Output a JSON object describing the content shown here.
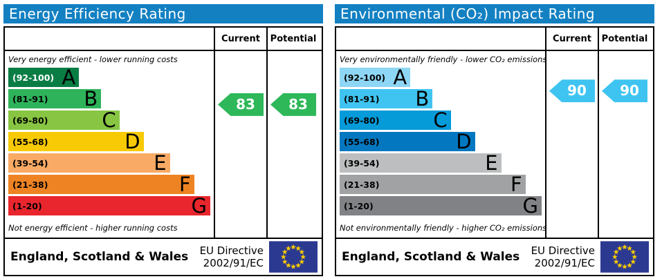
{
  "footer": {
    "region": "England, Scotland & Wales",
    "directive_line1": "EU Directive",
    "directive_line2": "2002/91/EC",
    "flag_bg": "#2b3990",
    "star_color": "#ffcc00"
  },
  "chart_data": [
    {
      "type": "bar",
      "title": "Energy Efficiency Rating",
      "title_bg": "#1380c2",
      "columns": {
        "current": "Current",
        "potential": "Potential"
      },
      "top_note": "Very energy efficient - lower running costs",
      "bottom_note": "Not energy efficient - higher running costs",
      "current": 83,
      "potential": 83,
      "marker_color": "#2eb859",
      "bands": [
        {
          "letter": "A",
          "range": "(92-100)",
          "lo": 92,
          "hi": 100,
          "color": "#0a7d45",
          "width_pct": 35,
          "range_color": "#ffffff"
        },
        {
          "letter": "B",
          "range": "(81-91)",
          "lo": 81,
          "hi": 91,
          "color": "#2eb35a",
          "width_pct": 46
        },
        {
          "letter": "C",
          "range": "(69-80)",
          "lo": 69,
          "hi": 80,
          "color": "#88c542",
          "width_pct": 55
        },
        {
          "letter": "D",
          "range": "(55-68)",
          "lo": 55,
          "hi": 68,
          "color": "#f8ca05",
          "width_pct": 67
        },
        {
          "letter": "E",
          "range": "(39-54)",
          "lo": 39,
          "hi": 54,
          "color": "#f9aa65",
          "width_pct": 80
        },
        {
          "letter": "F",
          "range": "(21-38)",
          "lo": 21,
          "hi": 38,
          "color": "#ee8323",
          "width_pct": 92
        },
        {
          "letter": "G",
          "range": "(1-20)",
          "lo": 1,
          "hi": 20,
          "color": "#e9262d",
          "width_pct": 100
        }
      ]
    },
    {
      "type": "bar",
      "title": "Environmental (CO₂) Impact Rating",
      "title_bg": "#1380c2",
      "columns": {
        "current": "Current",
        "potential": "Potential"
      },
      "top_note": "Very environmentally friendly - lower CO₂ emissions",
      "bottom_note": "Not environmentally friendly - higher CO₂ emissions",
      "current": 90,
      "potential": 90,
      "marker_color": "#3fc4f1",
      "bands": [
        {
          "letter": "A",
          "range": "(92-100)",
          "lo": 92,
          "hi": 100,
          "color": "#8ed6f5",
          "width_pct": 35
        },
        {
          "letter": "B",
          "range": "(81-91)",
          "lo": 81,
          "hi": 91,
          "color": "#3fc4f1",
          "width_pct": 46
        },
        {
          "letter": "C",
          "range": "(69-80)",
          "lo": 69,
          "hi": 80,
          "color": "#059ad8",
          "width_pct": 55
        },
        {
          "letter": "D",
          "range": "(55-68)",
          "lo": 55,
          "hi": 68,
          "color": "#0378c0",
          "width_pct": 67
        },
        {
          "letter": "E",
          "range": "(39-54)",
          "lo": 39,
          "hi": 54,
          "color": "#bdbebf",
          "width_pct": 80
        },
        {
          "letter": "F",
          "range": "(21-38)",
          "lo": 21,
          "hi": 38,
          "color": "#a1a2a4",
          "width_pct": 92
        },
        {
          "letter": "G",
          "range": "(1-20)",
          "lo": 1,
          "hi": 20,
          "color": "#818285",
          "width_pct": 100
        }
      ]
    }
  ]
}
